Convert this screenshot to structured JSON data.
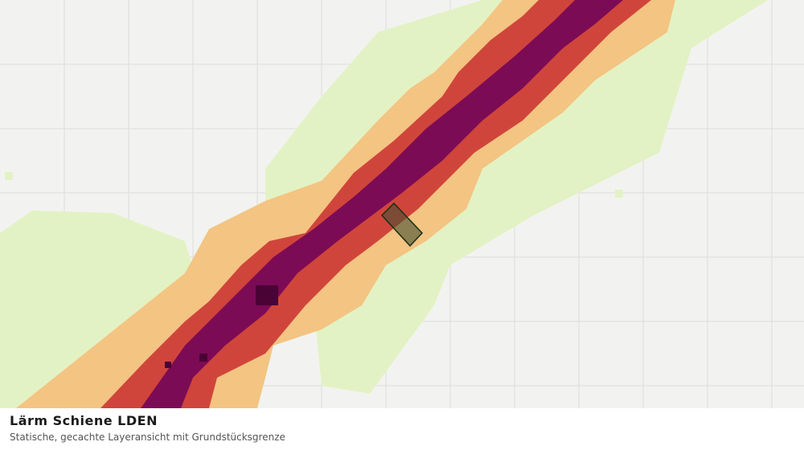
{
  "title": "Lärm Schiene LDEN",
  "subtitle": "Statische, gecachte Layeransicht mit Grundstücksgrenze"
}
